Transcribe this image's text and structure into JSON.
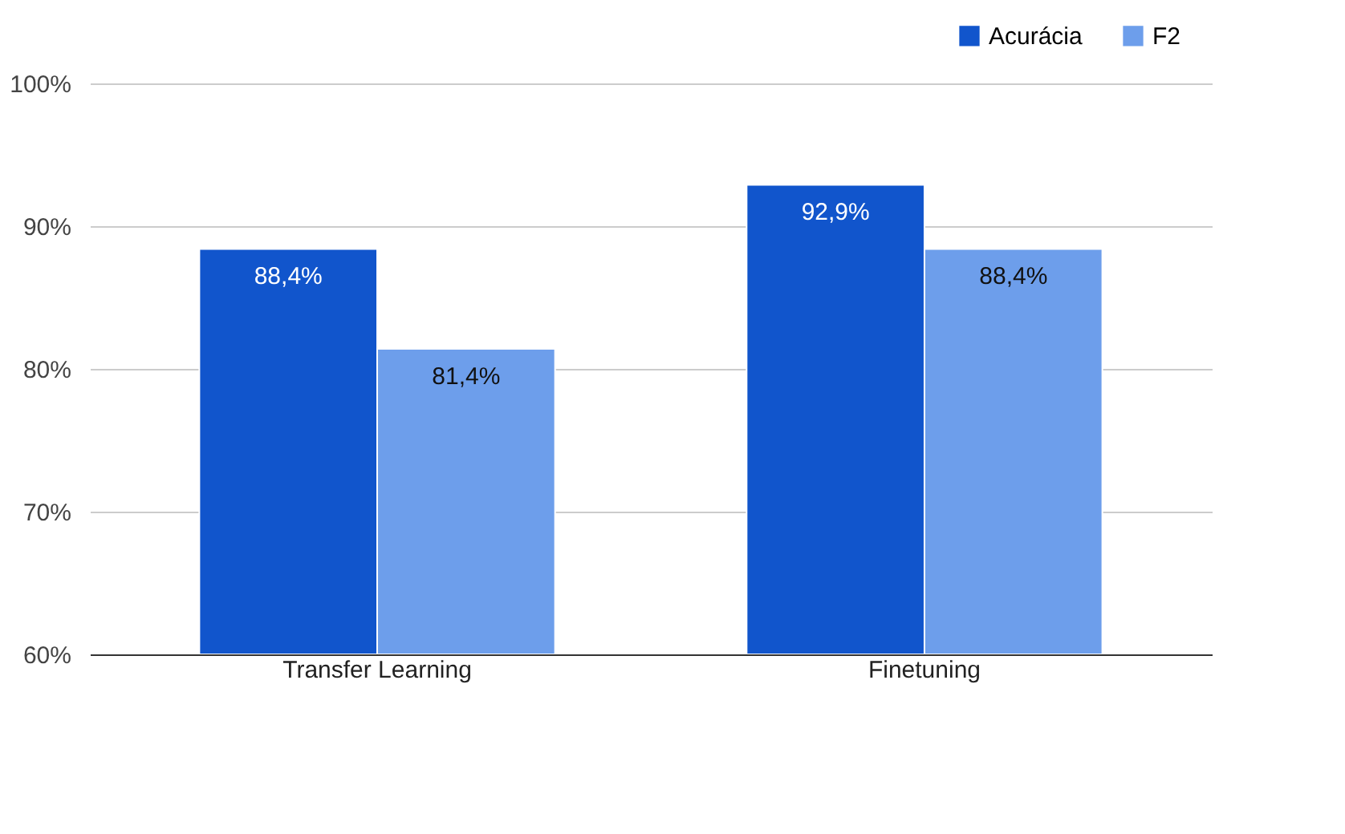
{
  "chart_data": {
    "type": "bar",
    "categories": [
      "Transfer Learning",
      "Finetuning"
    ],
    "series": [
      {
        "name": "Acurácia",
        "color": "#1155cc",
        "values": [
          88.4,
          92.9
        ],
        "value_labels": [
          "88,4%",
          "92,9%"
        ]
      },
      {
        "name": "F2",
        "color": "#6d9eeb",
        "values": [
          81.4,
          88.4
        ],
        "value_labels": [
          "81,4%",
          "88,4%"
        ]
      }
    ],
    "ylim": [
      60,
      100
    ],
    "yticks": [
      {
        "value": 60,
        "label": "60%"
      },
      {
        "value": 70,
        "label": "70%"
      },
      {
        "value": 80,
        "label": "80%"
      },
      {
        "value": 90,
        "label": "90%"
      },
      {
        "value": 100,
        "label": "100%"
      }
    ],
    "grid": "y",
    "legend": "top right"
  }
}
